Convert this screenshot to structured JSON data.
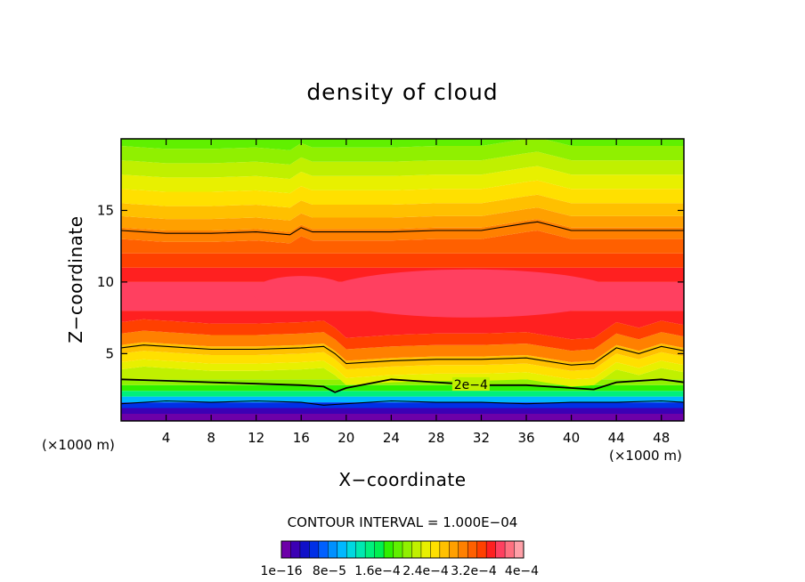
{
  "chart_data": {
    "type": "heatmap",
    "title": "density of cloud",
    "xlabel": "X−coordinate",
    "ylabel": "Z−coordinate",
    "x_unit": "(×1000 m)",
    "z_unit": "(×1000 m)",
    "xlim": [
      0,
      50
    ],
    "ylim": [
      0.3,
      20
    ],
    "x_ticks": [
      "4",
      "8",
      "12",
      "16",
      "20",
      "24",
      "28",
      "32",
      "36",
      "40",
      "44",
      "48"
    ],
    "y_ticks": [
      "5",
      "10",
      "15"
    ],
    "contour_interval": "CONTOUR INTERVAL = 1.000E−04",
    "contour_label": "2e−4",
    "colorbar": {
      "labels": [
        "1e−16",
        "8e−5",
        "1.6e−4",
        "2.4e−4",
        "3.2e−4",
        "4e−4"
      ],
      "colors": [
        "#6d00a8",
        "#3c00b4",
        "#1010c8",
        "#0030e6",
        "#0060ff",
        "#0090ff",
        "#00b8ff",
        "#00d8e0",
        "#00e8b0",
        "#00f07c",
        "#00f050",
        "#30f000",
        "#60f000",
        "#90f000",
        "#c0f000",
        "#e8f000",
        "#ffe000",
        "#ffc000",
        "#ffa000",
        "#ff8000",
        "#ff6000",
        "#ff4000",
        "#ff2020",
        "#ff4060",
        "#ff7080",
        "#ffa0a8"
      ]
    },
    "series": [
      {
        "name": "",
        "contour": "1e−4",
        "x": [
          0,
          4,
          8,
          12,
          15,
          16,
          17,
          20,
          24,
          28,
          32,
          36,
          37,
          38,
          40,
          44,
          48,
          50
        ],
        "y": [
          13.6,
          13.4,
          13.4,
          13.5,
          13.3,
          13.8,
          13.5,
          13.5,
          13.5,
          13.6,
          13.6,
          14.1,
          14.2,
          14.0,
          13.6,
          13.6,
          13.6,
          13.6
        ]
      },
      {
        "name": "",
        "contour": "1e−4",
        "x": [
          0,
          2,
          4,
          6,
          8,
          12,
          16,
          18,
          19,
          20,
          24,
          28,
          32,
          36,
          40,
          42,
          44,
          46,
          48,
          50
        ],
        "y": [
          5.4,
          5.6,
          5.5,
          5.4,
          5.3,
          5.3,
          5.4,
          5.5,
          5.0,
          4.3,
          4.5,
          4.6,
          4.6,
          4.7,
          4.2,
          4.3,
          5.4,
          5.0,
          5.5,
          5.2
        ]
      },
      {
        "name": "",
        "contour": "2e−4",
        "x": [
          0,
          4,
          8,
          12,
          16,
          18,
          19,
          20,
          24,
          28,
          32,
          36,
          40,
          42,
          44,
          48,
          50
        ],
        "y": [
          3.2,
          3.1,
          3.0,
          2.9,
          2.8,
          2.7,
          2.3,
          2.6,
          3.2,
          3.0,
          2.8,
          2.8,
          2.6,
          2.5,
          3.0,
          3.2,
          3.0
        ]
      },
      {
        "name": "",
        "contour": "1e−4",
        "x": [
          0,
          4,
          8,
          12,
          16,
          18,
          20,
          24,
          28,
          32,
          36,
          40,
          44,
          48,
          50
        ],
        "y": [
          1.5,
          1.7,
          1.6,
          1.7,
          1.6,
          1.4,
          1.5,
          1.7,
          1.6,
          1.6,
          1.5,
          1.6,
          1.6,
          1.7,
          1.6
        ]
      }
    ],
    "field_profile": {
      "z": [
        0.3,
        0.8,
        1.2,
        1.6,
        2.0,
        2.4,
        2.8,
        3.2,
        3.7,
        4.2,
        4.8,
        5.4,
        6.2,
        7.0,
        8.0,
        9.0,
        10.0,
        11.0,
        12.0,
        13.0,
        13.8,
        14.6,
        15.5,
        16.5,
        17.5,
        18.5,
        19.5
      ],
      "band": [
        0,
        1,
        3,
        6,
        9,
        11,
        13,
        14,
        15,
        16,
        17,
        19,
        21,
        22,
        23,
        23,
        22,
        21,
        20,
        19,
        18,
        17,
        16,
        15,
        14,
        13,
        12
      ]
    }
  }
}
